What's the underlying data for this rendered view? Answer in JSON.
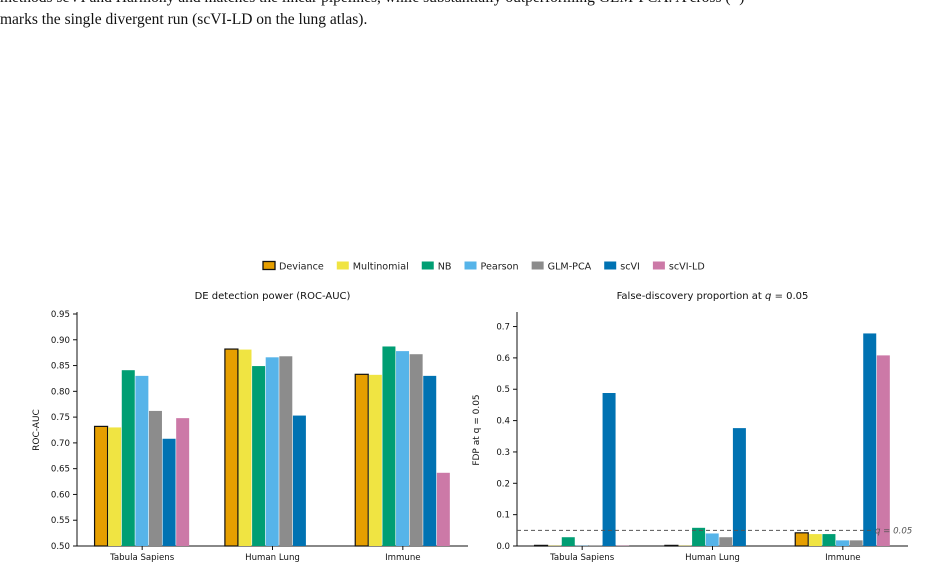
{
  "caption": {
    "line1": "methods scVI and Harmony and matches the linear pipelines, while substantially outperforming GLM-PCA. A cross (×)",
    "line2": "marks the single divergent run (scVI-LD on the lung atlas)."
  },
  "legend": [
    {
      "label": "Deviance",
      "color": "#E69F00",
      "outlined": true
    },
    {
      "label": "Multinomial",
      "color": "#F0E442",
      "outlined": false
    },
    {
      "label": "NB",
      "color": "#009E73",
      "outlined": false
    },
    {
      "label": "Pearson",
      "color": "#56B4E9",
      "outlined": false
    },
    {
      "label": "GLM-PCA",
      "color": "#8C8C8C",
      "outlined": false
    },
    {
      "label": "scVI",
      "color": "#0072B2",
      "outlined": false
    },
    {
      "label": "scVI-LD",
      "color": "#CC79A7",
      "outlined": false
    }
  ],
  "chart_data": [
    {
      "type": "bar",
      "title": "DE detection power (ROC-AUC)",
      "xlabel": "",
      "ylabel": "ROC-AUC",
      "ylim": [
        0.5,
        0.95
      ],
      "yticks": [
        "0.50",
        "0.55",
        "0.60",
        "0.65",
        "0.70",
        "0.75",
        "0.80",
        "0.85",
        "0.90",
        "0.95"
      ],
      "categories": [
        "Tabula Sapiens",
        "Human Lung",
        "Immune"
      ],
      "series": [
        {
          "name": "Deviance",
          "values": [
            0.732,
            0.882,
            0.833
          ]
        },
        {
          "name": "Multinomial",
          "values": [
            0.73,
            0.881,
            0.832
          ]
        },
        {
          "name": "NB",
          "values": [
            0.841,
            0.849,
            0.887
          ]
        },
        {
          "name": "Pearson",
          "values": [
            0.83,
            0.866,
            0.878
          ]
        },
        {
          "name": "GLM-PCA",
          "values": [
            0.762,
            0.868,
            0.872
          ]
        },
        {
          "name": "scVI",
          "values": [
            0.708,
            0.753,
            0.83
          ]
        },
        {
          "name": "scVI-LD",
          "values": [
            0.748,
            null,
            0.642
          ]
        }
      ],
      "legend_position": "top-center"
    },
    {
      "type": "bar",
      "title": "False-discovery proportion at q = 0.05",
      "xlabel": "",
      "ylabel": "FDP at q = 0.05",
      "ylim": [
        0,
        0.74
      ],
      "yticks": [
        "0.0",
        "0.1",
        "0.2",
        "0.3",
        "0.4",
        "0.5",
        "0.6",
        "0.7"
      ],
      "categories": [
        "Tabula Sapiens",
        "Human Lung",
        "Immune"
      ],
      "series": [
        {
          "name": "Deviance",
          "values": [
            0.002,
            0.002,
            0.042
          ]
        },
        {
          "name": "Multinomial",
          "values": [
            0.001,
            0.001,
            0.038
          ]
        },
        {
          "name": "NB",
          "values": [
            0.028,
            0.058,
            0.038
          ]
        },
        {
          "name": "Pearson",
          "values": [
            0.001,
            0.04,
            0.018
          ]
        },
        {
          "name": "GLM-PCA",
          "values": [
            0.001,
            0.028,
            0.018
          ]
        },
        {
          "name": "scVI",
          "values": [
            0.488,
            0.376,
            0.678
          ]
        },
        {
          "name": "scVI-LD",
          "values": [
            0.001,
            null,
            0.608
          ]
        }
      ],
      "reference_line": {
        "value": 0.05,
        "label": "q = 0.05"
      }
    }
  ]
}
